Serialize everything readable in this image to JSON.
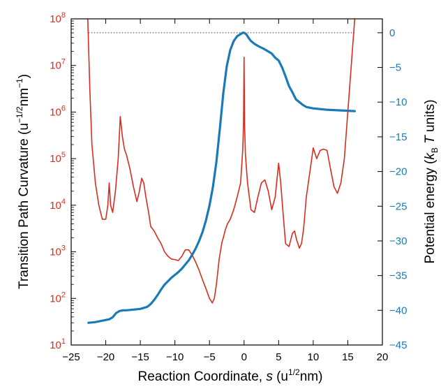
{
  "chart_data": {
    "type": "line",
    "xlabel": "Reaction Coordinate, s (u^1/2nm)",
    "xlabel_parts": {
      "pre": "Reaction Coordinate, ",
      "sym": "s",
      "mid": " (u",
      "sup": "1/2",
      "post": "nm)"
    },
    "ylabel_left_parts": {
      "pre": "Transition Path Curvature (u",
      "sup1": "−1/2",
      "mid": "nm",
      "sup2": "−1",
      "post": ")"
    },
    "ylabel_right_parts": {
      "pre": "Potential energy (",
      "k": "k",
      "sub": "B",
      "T": " T",
      "post": " units)"
    },
    "xlim": [
      -25,
      20
    ],
    "xticks": [
      "−25",
      "−20",
      "−15",
      "−10",
      "−5",
      "0",
      "5",
      "10",
      "15",
      "20"
    ],
    "xtick_values": [
      -25,
      -20,
      -15,
      -10,
      -5,
      0,
      5,
      10,
      15,
      20
    ],
    "y_left": {
      "scale": "log",
      "lim": [
        10,
        100000000
      ],
      "tick_exponents": [
        1,
        2,
        3,
        4,
        5,
        6,
        7,
        8
      ],
      "tick_base": "10",
      "color": "#d62d1f"
    },
    "y_right": {
      "scale": "linear",
      "lim": [
        -45,
        2
      ],
      "ticks": [
        "0",
        "−5",
        "−10",
        "−15",
        "−20",
        "−25",
        "−30",
        "−35",
        "−40",
        "−45"
      ],
      "tick_values": [
        0,
        -5,
        -10,
        -15,
        -20,
        -25,
        -30,
        -35,
        -40,
        -45
      ],
      "color": "#1a7ab8"
    },
    "reference_line": {
      "axis": "right",
      "y": 0,
      "style": "dotted",
      "x_range": [
        -22.5,
        16
      ]
    },
    "series": [
      {
        "axis": "left",
        "color": "#d62d1f",
        "x": [
          -22.6,
          -22.3,
          -22.0,
          -21.5,
          -21.0,
          -20.5,
          -20.0,
          -19.7,
          -19.5,
          -19.3,
          -19.0,
          -18.6,
          -18.2,
          -17.9,
          -17.6,
          -17.3,
          -17.0,
          -16.5,
          -16.0,
          -15.5,
          -15.2,
          -14.8,
          -14.5,
          -14.2,
          -13.8,
          -13.5,
          -13.0,
          -12.5,
          -12.0,
          -11.5,
          -11.0,
          -10.5,
          -10.0,
          -9.5,
          -9.0,
          -8.5,
          -8.0,
          -7.5,
          -7.0,
          -6.5,
          -6.0,
          -5.5,
          -5.0,
          -4.6,
          -4.3,
          -4.0,
          -3.6,
          -3.2,
          -3.0,
          -2.7,
          -2.4,
          -2.0,
          -1.5,
          -1.0,
          -0.5,
          -0.2,
          -0.08,
          0.0,
          0.08,
          0.2,
          0.5,
          1.0,
          1.5,
          2.0,
          2.5,
          3.0,
          3.5,
          4.0,
          4.5,
          5.0,
          5.3,
          5.6,
          6.0,
          6.5,
          7.0,
          7.3,
          7.6,
          8.0,
          8.3,
          8.6,
          9.0,
          9.5,
          10.0,
          10.5,
          11.0,
          11.5,
          12.0,
          12.5,
          13.0,
          13.5,
          14.0,
          14.5,
          15.0,
          15.5,
          16.0
        ],
        "y": [
          100000000.0,
          3000000.0,
          200000.0,
          30000.0,
          10000.0,
          5000.0,
          5000.0,
          10000.0,
          30000.0,
          10000.0,
          7000.0,
          20000.0,
          100000.0,
          800000.0,
          300000.0,
          160000.0,
          120000.0,
          60000.0,
          25000.0,
          12000.0,
          18000.0,
          38000.0,
          30000.0,
          15000.0,
          7000.0,
          3500.0,
          2800.0,
          2000.0,
          1500.0,
          1000.0,
          800,
          700,
          680,
          650,
          800,
          1100,
          1100,
          850,
          600,
          400,
          250,
          160,
          100,
          80,
          100,
          200,
          700,
          1600,
          2000,
          3000,
          4000,
          5000,
          8000,
          15000.0,
          30000.0,
          150000.0,
          500000.0,
          15000000.0,
          500000.0,
          120000.0,
          30000.0,
          8000,
          7000,
          15000.0,
          30000.0,
          35000.0,
          20000.0,
          8000,
          15000.0,
          80000.0,
          30000.0,
          8000,
          1500,
          1300,
          2500,
          2800,
          1800,
          1200,
          1500,
          3000,
          15000.0,
          50000.0,
          170000.0,
          100000.0,
          150000.0,
          160000.0,
          150000.0,
          60000.0,
          25000.0,
          18000.0,
          30000.0,
          100000.0,
          1000000.0,
          10000000.0,
          100000000.0
        ]
      },
      {
        "axis": "right",
        "color": "#1a7ab8",
        "x": [
          -22.5,
          -21.5,
          -20.5,
          -19.5,
          -19.0,
          -18.5,
          -18.0,
          -17.5,
          -17.0,
          -16.0,
          -15.0,
          -14.0,
          -13.5,
          -13.0,
          -12.5,
          -12.0,
          -11.5,
          -11.0,
          -10.5,
          -10.0,
          -9.5,
          -9.0,
          -8.5,
          -8.0,
          -7.5,
          -7.0,
          -6.5,
          -6.0,
          -5.5,
          -5.0,
          -4.5,
          -4.0,
          -3.5,
          -3.0,
          -2.5,
          -2.0,
          -1.5,
          -1.0,
          -0.5,
          -0.2,
          0.0,
          0.3,
          0.7,
          1.0,
          1.5,
          2.0,
          3.0,
          4.0,
          4.5,
          5.0,
          5.5,
          6.0,
          6.5,
          7.0,
          7.5,
          8.0,
          8.5,
          9.0,
          9.5,
          10.0,
          11.0,
          12.0,
          13.0,
          14.0,
          15.0,
          16.0
        ],
        "y": [
          -41.8,
          -41.7,
          -41.5,
          -41.3,
          -41.0,
          -40.4,
          -40.1,
          -40.0,
          -40.0,
          -39.9,
          -39.8,
          -39.5,
          -39.1,
          -38.5,
          -37.8,
          -37.0,
          -36.3,
          -35.8,
          -35.3,
          -34.9,
          -34.5,
          -34.0,
          -33.4,
          -32.8,
          -32.0,
          -31.1,
          -30.0,
          -28.7,
          -27.0,
          -24.9,
          -22.2,
          -18.6,
          -13.8,
          -8.7,
          -4.8,
          -2.5,
          -1.2,
          -0.5,
          -0.2,
          0.0,
          0.0,
          -0.2,
          -0.8,
          -1.2,
          -1.6,
          -1.9,
          -2.4,
          -3.0,
          -3.6,
          -4.0,
          -5.0,
          -6.3,
          -7.7,
          -8.6,
          -9.6,
          -10.0,
          -10.4,
          -10.7,
          -10.8,
          -10.9,
          -11.0,
          -11.1,
          -11.15,
          -11.2,
          -11.25,
          -11.3
        ]
      }
    ]
  }
}
